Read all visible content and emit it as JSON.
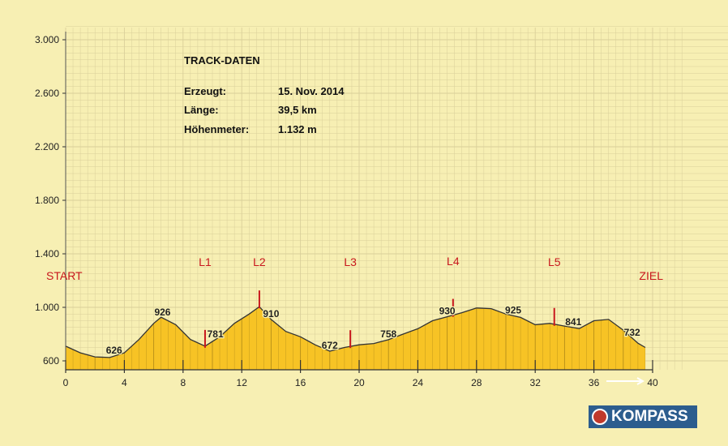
{
  "info": {
    "title": "TRACK-DATEN",
    "rows": [
      {
        "label": "Erzeugt:",
        "value": "15. Nov. 2014"
      },
      {
        "label": "Länge:",
        "value": "39,5 km"
      },
      {
        "label": "Höhenmeter:",
        "value": "1.132 m"
      }
    ]
  },
  "logo": {
    "text": "KOMPASS",
    "icon": "compass-logo-icon"
  },
  "colors": {
    "background": "#f7efb3",
    "fill": "#f7c325",
    "grid": "#d9cf9a",
    "marker": "#c8171d",
    "logo": "#2c5d8e"
  },
  "chart_data": {
    "type": "area",
    "title": "",
    "xlabel": "",
    "ylabel": "",
    "xlim": [
      0,
      40
    ],
    "ylim": [
      600,
      3000
    ],
    "grid": true,
    "x_ticks": [
      0,
      4,
      8,
      12,
      16,
      20,
      24,
      28,
      32,
      36,
      40
    ],
    "x_tick_labels": [
      "0",
      "4",
      "8",
      "12",
      "16",
      "20",
      "24",
      "28",
      "32",
      "36",
      "40"
    ],
    "y_ticks": [
      600,
      1000,
      1400,
      1800,
      2200,
      2600,
      3000
    ],
    "y_tick_labels": [
      "600",
      "1.000",
      "1.400",
      "1.800",
      "2.200",
      "2.600",
      "3.000"
    ],
    "x": [
      0,
      1,
      2,
      3,
      4,
      5,
      6,
      6.5,
      7.5,
      8.5,
      9.5,
      10.5,
      11.5,
      12.5,
      13.2,
      14,
      15,
      16,
      17,
      18,
      19,
      20,
      21,
      22,
      23,
      24,
      25,
      26,
      27,
      28,
      29,
      30,
      31,
      32,
      33,
      34,
      35,
      36,
      37,
      38,
      39,
      39.5
    ],
    "y": [
      710,
      660,
      630,
      625,
      660,
      760,
      880,
      926,
      870,
      760,
      710,
      780,
      880,
      950,
      1005,
      910,
      820,
      780,
      720,
      672,
      700,
      720,
      730,
      758,
      800,
      840,
      900,
      930,
      960,
      995,
      990,
      950,
      925,
      870,
      880,
      860,
      841,
      900,
      910,
      830,
      732,
      700
    ],
    "elevation_labels": [
      {
        "x": 3.3,
        "value": "626"
      },
      {
        "x": 6.6,
        "value": "926"
      },
      {
        "x": 10.2,
        "value": "781"
      },
      {
        "x": 14.0,
        "value": "910"
      },
      {
        "x": 18.0,
        "value": "672"
      },
      {
        "x": 22.0,
        "value": "758"
      },
      {
        "x": 26.0,
        "value": "930"
      },
      {
        "x": 30.5,
        "value": "925"
      },
      {
        "x": 34.6,
        "value": "841"
      },
      {
        "x": 38.6,
        "value": "732"
      }
    ],
    "section_labels": [
      {
        "x": 0,
        "label": "START"
      },
      {
        "x": 9.5,
        "label": "L1"
      },
      {
        "x": 13.2,
        "label": "L2"
      },
      {
        "x": 19.4,
        "label": "L3"
      },
      {
        "x": 26.4,
        "label": "L4"
      },
      {
        "x": 33.3,
        "label": "L5"
      },
      {
        "x": 39.5,
        "label": "ZIEL"
      }
    ],
    "markers_x": [
      9.5,
      13.2,
      19.4,
      26.4,
      33.3
    ]
  }
}
